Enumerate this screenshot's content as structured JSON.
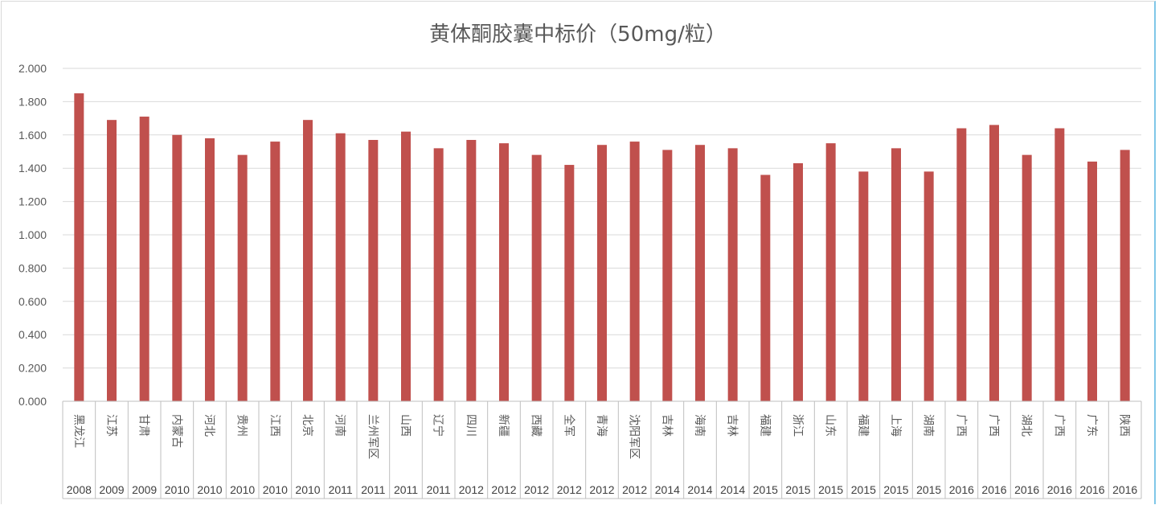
{
  "chart_data": {
    "type": "bar",
    "title": "黄体酮胶囊中标价（50mg/粒）",
    "xlabel": "",
    "ylabel": "",
    "ylim": [
      0,
      2
    ],
    "yticks": [
      "0.000",
      "0.200",
      "0.400",
      "0.600",
      "0.800",
      "1.000",
      "1.200",
      "1.400",
      "1.600",
      "1.800",
      "2.000"
    ],
    "grid": true,
    "legend": "none",
    "bar_color": "#c0504d",
    "categories": [
      {
        "region": "黑龙江",
        "year": "2008"
      },
      {
        "region": "江苏",
        "year": "2009"
      },
      {
        "region": "甘肃",
        "year": "2009"
      },
      {
        "region": "内蒙古",
        "year": "2010"
      },
      {
        "region": "河北",
        "year": "2010"
      },
      {
        "region": "贵州",
        "year": "2010"
      },
      {
        "region": "江西",
        "year": "2010"
      },
      {
        "region": "北京",
        "year": "2010"
      },
      {
        "region": "河南",
        "year": "2011"
      },
      {
        "region": "兰州军区",
        "year": "2011"
      },
      {
        "region": "山西",
        "year": "2011"
      },
      {
        "region": "辽宁",
        "year": "2011"
      },
      {
        "region": "四川",
        "year": "2012"
      },
      {
        "region": "新疆",
        "year": "2012"
      },
      {
        "region": "西藏",
        "year": "2012"
      },
      {
        "region": "全军",
        "year": "2012"
      },
      {
        "region": "青海",
        "year": "2012"
      },
      {
        "region": "沈阳军区",
        "year": "2012"
      },
      {
        "region": "吉林",
        "year": "2014"
      },
      {
        "region": "海南",
        "year": "2014"
      },
      {
        "region": "吉林",
        "year": "2014"
      },
      {
        "region": "福建",
        "year": "2015"
      },
      {
        "region": "浙江",
        "year": "2015"
      },
      {
        "region": "山东",
        "year": "2015"
      },
      {
        "region": "福建",
        "year": "2015"
      },
      {
        "region": "上海",
        "year": "2015"
      },
      {
        "region": "湖南",
        "year": "2015"
      },
      {
        "region": "广西",
        "year": "2016"
      },
      {
        "region": "广西",
        "year": "2016"
      },
      {
        "region": "湖北",
        "year": "2016"
      },
      {
        "region": "广西",
        "year": "2016"
      },
      {
        "region": "广东",
        "year": "2016"
      },
      {
        "region": "陕西",
        "year": "2016"
      }
    ],
    "values": [
      1.85,
      1.69,
      1.71,
      1.6,
      1.58,
      1.48,
      1.56,
      1.69,
      1.61,
      1.57,
      1.62,
      1.52,
      1.57,
      1.55,
      1.48,
      1.42,
      1.54,
      1.56,
      1.51,
      1.54,
      1.52,
      1.36,
      1.43,
      1.55,
      1.38,
      1.52,
      1.38,
      1.64,
      1.66,
      1.48,
      1.64,
      1.44,
      1.51
    ]
  }
}
